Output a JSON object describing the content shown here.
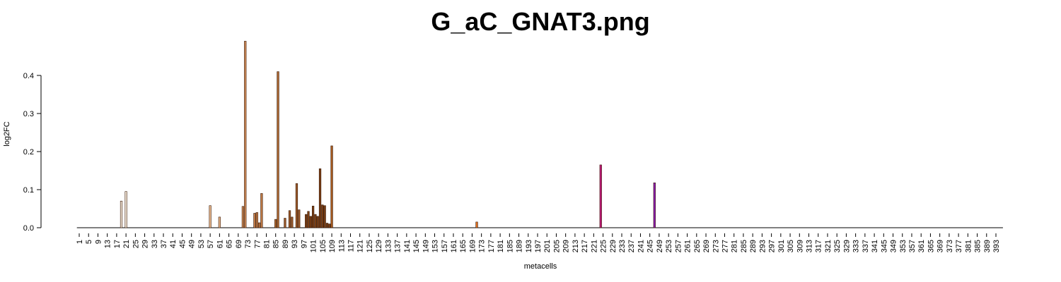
{
  "chart_data": {
    "type": "bar",
    "title": "G_aC_GNAT3.png",
    "x_label": "metacells",
    "y_label": "log2FC",
    "ylim": [
      0,
      0.5
    ],
    "yticks": [
      {
        "value": 0,
        "label": "0.0"
      },
      {
        "value": 0.1,
        "label": "0.1"
      },
      {
        "value": 0.2,
        "label": "0.2"
      },
      {
        "value": 0.3,
        "label": "0.3"
      },
      {
        "value": 0.4,
        "label": "0.4"
      }
    ],
    "categories": [
      "1",
      null,
      null,
      null,
      "5",
      null,
      null,
      null,
      "9",
      null,
      null,
      null,
      "13",
      null,
      null,
      null,
      "17",
      null,
      null,
      null,
      "21",
      null,
      null,
      null,
      "25",
      null,
      null,
      null,
      "29",
      null,
      null,
      null,
      "33",
      null,
      null,
      null,
      "37",
      null,
      null,
      null,
      "41",
      null,
      null,
      null,
      "45",
      null,
      null,
      null,
      "49",
      null,
      null,
      null,
      "53",
      null,
      null,
      null,
      "57",
      null,
      null,
      null,
      "61",
      null,
      null,
      null,
      "65",
      null,
      null,
      null,
      "69",
      null,
      null,
      null,
      "73",
      null,
      null,
      null,
      "77",
      null,
      null,
      null,
      "81",
      null,
      null,
      null,
      "85",
      null,
      null,
      null,
      "89",
      null,
      null,
      null,
      "93",
      null,
      null,
      null,
      "97",
      null,
      null,
      null,
      "101",
      null,
      null,
      null,
      "105",
      null,
      null,
      null,
      "109",
      null,
      null,
      null,
      "113",
      null,
      null,
      null,
      "117",
      null,
      null,
      null,
      "121",
      null,
      null,
      null,
      "125",
      null,
      null,
      null,
      "129",
      null,
      null,
      null,
      "133",
      null,
      null,
      null,
      "137",
      null,
      null,
      null,
      "141",
      null,
      null,
      null,
      "145",
      null,
      null,
      null,
      "149",
      null,
      null,
      null,
      "153",
      null,
      null,
      null,
      "157",
      null,
      null,
      null,
      "161",
      null,
      null,
      null,
      "165",
      null,
      null,
      null,
      "169",
      null,
      null,
      null,
      "173",
      null,
      null,
      null,
      "177",
      null,
      null,
      null,
      "181",
      null,
      null,
      null,
      "185",
      null,
      null,
      null,
      "189",
      null,
      null,
      null,
      "193",
      null,
      null,
      null,
      "197",
      null,
      null,
      null,
      "201",
      null,
      null,
      null,
      "205",
      null,
      null,
      null,
      "209",
      null,
      null,
      null,
      "213",
      null,
      null,
      null,
      "217",
      null,
      null,
      null,
      "221",
      null,
      null,
      null,
      "225",
      null,
      null,
      null,
      "229",
      null,
      null,
      null,
      "233",
      null,
      null,
      null,
      "237",
      null,
      null,
      null,
      "241",
      null,
      null,
      null,
      "245",
      null,
      null,
      null,
      "249",
      null,
      null,
      null,
      "253",
      null,
      null,
      null,
      "257",
      null,
      null,
      null,
      "261",
      null,
      null,
      null,
      "265",
      null,
      null,
      null,
      "269",
      null,
      null,
      null,
      "273",
      null,
      null,
      null,
      "277",
      null,
      null,
      null,
      "281",
      null,
      null,
      null,
      "285",
      null,
      null,
      null,
      "289",
      null,
      null,
      null,
      "293",
      null,
      null,
      null,
      "297",
      null,
      null,
      null,
      "301",
      null,
      null,
      null,
      "305",
      null,
      null,
      null,
      "309",
      null,
      null,
      null,
      "313",
      null,
      null,
      null,
      "317",
      null,
      null,
      null,
      "321",
      null,
      null,
      null,
      "325",
      null,
      null,
      null,
      "329",
      null,
      null,
      null,
      "333",
      null,
      null,
      null,
      "337",
      null,
      null,
      null,
      "341",
      null,
      null,
      null,
      "345",
      null,
      null,
      null,
      "349",
      null,
      null,
      null,
      "353",
      null,
      null,
      null,
      "357",
      null,
      null,
      null,
      "361",
      null,
      null,
      null,
      "365",
      null,
      null,
      null,
      "369",
      null,
      null,
      null,
      "373",
      null,
      null,
      null,
      "377",
      null,
      null,
      null,
      "381",
      null,
      null,
      null,
      "385",
      null,
      null,
      null,
      "389",
      null,
      null,
      null,
      "393"
    ],
    "values": [
      0,
      0,
      0,
      0,
      0,
      0,
      0,
      0,
      0,
      0,
      0,
      0,
      0,
      0,
      0,
      0,
      0,
      0,
      0.07,
      0,
      0.095,
      0,
      0,
      0,
      0,
      0,
      0,
      0,
      0,
      0,
      0,
      0,
      0,
      0,
      0,
      0,
      0,
      0,
      0,
      0,
      0,
      0,
      0,
      0,
      0,
      0,
      0,
      0,
      0,
      0,
      0,
      0,
      0,
      0,
      0,
      0,
      0.058,
      0,
      0,
      0,
      0.028,
      0,
      0,
      0,
      0,
      0,
      0,
      0,
      0,
      0,
      0.056,
      0.49,
      0,
      0,
      0,
      0.038,
      0.04,
      0.013,
      0.09,
      0,
      0,
      0,
      0,
      0,
      0.022,
      0.41,
      0,
      0,
      0.025,
      0,
      0.045,
      0.028,
      0,
      0.116,
      0.047,
      0,
      0,
      0.035,
      0.043,
      0.03,
      0.057,
      0.035,
      0.03,
      0.155,
      0.06,
      0.058,
      0.012,
      0.01,
      0.215,
      0,
      0,
      0,
      0,
      0,
      0,
      0,
      0,
      0,
      0,
      0,
      0,
      0,
      0,
      0,
      0,
      0,
      0,
      0,
      0,
      0,
      0,
      0,
      0,
      0,
      0,
      0,
      0,
      0,
      0,
      0,
      0,
      0,
      0,
      0,
      0,
      0,
      0,
      0,
      0,
      0,
      0,
      0,
      0,
      0,
      0,
      0,
      0,
      0,
      0,
      0,
      0,
      0,
      0,
      0,
      0,
      0,
      0,
      0,
      0,
      0,
      0.015,
      0,
      0,
      0,
      0,
      0,
      0,
      0,
      0,
      0,
      0,
      0,
      0,
      0,
      0,
      0,
      0,
      0,
      0,
      0,
      0,
      0,
      0,
      0,
      0,
      0,
      0,
      0,
      0,
      0,
      0,
      0,
      0,
      0,
      0,
      0,
      0,
      0,
      0,
      0,
      0,
      0,
      0,
      0,
      0,
      0,
      0,
      0,
      0,
      0,
      0,
      0,
      0,
      0.165,
      0,
      0,
      0,
      0,
      0,
      0,
      0,
      0,
      0,
      0,
      0,
      0,
      0,
      0,
      0,
      0,
      0,
      0,
      0,
      0,
      0,
      0,
      0.118,
      0,
      0,
      0,
      0,
      0,
      0,
      0,
      0,
      0,
      0,
      0,
      0,
      0,
      0,
      0,
      0,
      0,
      0,
      0,
      0,
      0,
      0,
      0,
      0,
      0,
      0,
      0,
      0,
      0,
      0,
      0,
      0,
      0,
      0,
      0,
      0,
      0,
      0,
      0,
      0,
      0,
      0,
      0,
      0,
      0,
      0,
      0,
      0,
      0,
      0,
      0,
      0,
      0,
      0,
      0,
      0,
      0,
      0,
      0,
      0,
      0,
      0,
      0,
      0,
      0,
      0,
      0,
      0,
      0,
      0,
      0,
      0,
      0,
      0,
      0,
      0,
      0,
      0,
      0,
      0,
      0,
      0,
      0,
      0,
      0,
      0,
      0,
      0,
      0,
      0,
      0,
      0,
      0,
      0,
      0,
      0,
      0,
      0,
      0,
      0,
      0,
      0,
      0,
      0,
      0,
      0,
      0,
      0,
      0,
      0,
      0,
      0,
      0,
      0,
      0,
      0,
      0,
      0,
      0,
      0,
      0,
      0,
      0,
      0,
      0,
      0,
      0,
      0,
      0,
      0,
      0,
      0,
      0,
      0,
      0,
      0,
      0,
      0,
      0,
      0,
      0,
      0,
      0,
      0,
      0,
      0
    ],
    "colors": [
      null,
      null,
      null,
      null,
      null,
      null,
      null,
      null,
      null,
      null,
      null,
      null,
      null,
      null,
      null,
      null,
      null,
      null,
      "#efe2d2",
      null,
      "#efe2d2",
      null,
      null,
      null,
      null,
      null,
      null,
      null,
      null,
      null,
      null,
      null,
      null,
      null,
      null,
      null,
      null,
      null,
      null,
      null,
      null,
      null,
      null,
      null,
      null,
      null,
      null,
      null,
      null,
      null,
      null,
      null,
      null,
      null,
      null,
      null,
      "#e8b78c",
      null,
      null,
      null,
      "#e8b78c",
      null,
      null,
      null,
      null,
      null,
      null,
      null,
      null,
      null,
      "#cd8a58",
      "#cd8a58",
      null,
      null,
      null,
      "#c07a45",
      "#c07a45",
      "#c07a45",
      "#c07a45",
      null,
      null,
      null,
      null,
      null,
      "#a8642e",
      "#a8642e",
      null,
      null,
      "#9c5a2a",
      null,
      "#9c5a2a",
      "#9c5a2a",
      null,
      "#9c5a2a",
      "#9c5a2a",
      null,
      null,
      "#7a3e14",
      "#7a3e14",
      "#7a3e14",
      "#7a3e14",
      "#7a3e14",
      "#7a3e14",
      "#7a3e14",
      "#7a3e14",
      "#7a3e14",
      "#7a3e14",
      "#7a3e14",
      "#a85a1e",
      null,
      null,
      null,
      null,
      null,
      null,
      null,
      null,
      null,
      null,
      null,
      null,
      null,
      null,
      null,
      null,
      null,
      null,
      null,
      null,
      null,
      null,
      null,
      null,
      null,
      null,
      null,
      null,
      null,
      null,
      null,
      null,
      null,
      null,
      null,
      null,
      null,
      null,
      null,
      null,
      null,
      null,
      null,
      null,
      null,
      null,
      null,
      null,
      null,
      null,
      null,
      null,
      null,
      null,
      null,
      null,
      null,
      null,
      null,
      null,
      null,
      "#e07020",
      null,
      null,
      null,
      null,
      null,
      null,
      null,
      null,
      null,
      null,
      null,
      null,
      null,
      null,
      null,
      null,
      null,
      null,
      null,
      null,
      null,
      null,
      null,
      null,
      null,
      null,
      null,
      null,
      null,
      null,
      null,
      null,
      null,
      null,
      null,
      null,
      null,
      null,
      null,
      null,
      null,
      null,
      null,
      null,
      null,
      null,
      null,
      null,
      null,
      null,
      null,
      null,
      "#c0187a",
      null,
      null,
      null,
      null,
      null,
      null,
      null,
      null,
      null,
      null,
      null,
      null,
      null,
      null,
      null,
      null,
      null,
      null,
      null,
      null,
      null,
      null,
      "#8a1ab0",
      null,
      null,
      null,
      null,
      null,
      null,
      null,
      null,
      null,
      null,
      null,
      null,
      null,
      null,
      null,
      null,
      null,
      null,
      null,
      null,
      null,
      null,
      null,
      null,
      null,
      null,
      null,
      null,
      null,
      null,
      null,
      null,
      null,
      null,
      null,
      null,
      null,
      null,
      null,
      null,
      null,
      null,
      null,
      null,
      null,
      null,
      null,
      null,
      null,
      null,
      null,
      null,
      null,
      null,
      null,
      null,
      null,
      null,
      null,
      null,
      null,
      null,
      null,
      null,
      null,
      null,
      null,
      null,
      null,
      null,
      null,
      null,
      null,
      null,
      null,
      null,
      null,
      null,
      null,
      null,
      null,
      null,
      null,
      null,
      null,
      null,
      null,
      null,
      null,
      null,
      null,
      null,
      null,
      null,
      null,
      null,
      null,
      null,
      null,
      null,
      null,
      null,
      null,
      null,
      null,
      null,
      null,
      null,
      null,
      null,
      null,
      null,
      null,
      null,
      null,
      null,
      null,
      null,
      null,
      null,
      null,
      null,
      null,
      null,
      null,
      null,
      null,
      null,
      null,
      null,
      null,
      null,
      null,
      null,
      null,
      null,
      null,
      null,
      null,
      null,
      null,
      null,
      null,
      null,
      null,
      null
    ]
  }
}
